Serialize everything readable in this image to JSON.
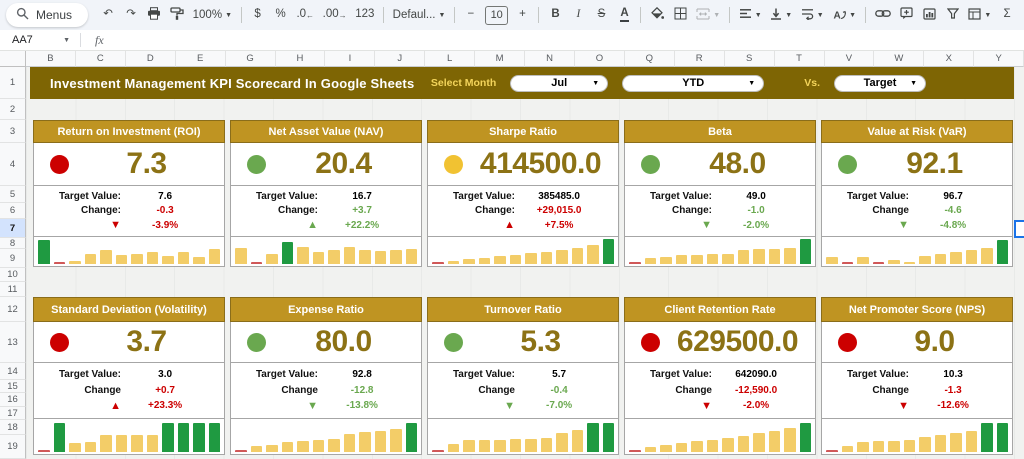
{
  "palette": {
    "banner_bg": "#7e6504",
    "card_header_bg": "#bf9422",
    "value_gold": "#8c7215",
    "bar_gold": "#f3cd68",
    "bar_green": "#1f9a41",
    "bar_red": "#d05858",
    "red": "#cc0000",
    "green": "#6aa84f",
    "yellow": "#f1c232",
    "banner_label": "#f3d45b"
  },
  "toolbar": {
    "items": [
      {
        "name": "menus",
        "type": "pill",
        "icon": "search",
        "label": "Menus"
      },
      {
        "name": "undo",
        "glyph": "↶"
      },
      {
        "name": "redo",
        "glyph": "↷"
      },
      {
        "name": "print",
        "icon": "print"
      },
      {
        "name": "paint-format",
        "icon": "paint"
      },
      {
        "name": "zoom",
        "label": "100%",
        "caret": true
      },
      {
        "type": "divider"
      },
      {
        "name": "format-as-currency",
        "glyph": "$"
      },
      {
        "name": "format-as-percent",
        "glyph": "%"
      },
      {
        "name": "decrease-decimal-places",
        "glyph": ".0",
        "small": "←"
      },
      {
        "name": "increase-decimal-places",
        "glyph": ".00",
        "small": "→"
      },
      {
        "name": "more-formats",
        "glyph": "123"
      },
      {
        "type": "divider"
      },
      {
        "name": "font",
        "label": "Defaul...",
        "caret": true
      },
      {
        "type": "divider"
      },
      {
        "name": "decrease-font-size",
        "glyph": "−"
      },
      {
        "name": "font-size",
        "type": "box",
        "label": "10"
      },
      {
        "name": "increase-font-size",
        "glyph": "+"
      },
      {
        "type": "divider"
      },
      {
        "name": "bold",
        "glyph": "B",
        "cls": "b"
      },
      {
        "name": "italic",
        "glyph": "I",
        "cls": "i"
      },
      {
        "name": "strikethrough",
        "glyph": "S",
        "cls": "s"
      },
      {
        "name": "text-color",
        "glyph": "A",
        "cls": "u"
      },
      {
        "type": "divider"
      },
      {
        "name": "fill-color",
        "icon": "fill"
      },
      {
        "name": "borders",
        "icon": "borders"
      },
      {
        "name": "merge-cells",
        "icon": "merge",
        "caret": true,
        "disabled": true
      },
      {
        "type": "divider"
      },
      {
        "name": "horizontal-align",
        "icon": "align",
        "caret": true
      },
      {
        "name": "vertical-align",
        "icon": "valign",
        "caret": true
      },
      {
        "name": "text-wrapping",
        "icon": "wrap",
        "caret": true
      },
      {
        "name": "text-rotation",
        "icon": "rotate",
        "caret": true
      },
      {
        "type": "divider"
      },
      {
        "name": "insert-link",
        "icon": "link"
      },
      {
        "name": "insert-comment",
        "icon": "comment"
      },
      {
        "name": "insert-chart",
        "icon": "chart"
      },
      {
        "name": "create-filter",
        "icon": "filter"
      },
      {
        "name": "table-views",
        "icon": "table",
        "caret": true
      },
      {
        "name": "functions",
        "glyph": "Σ"
      }
    ]
  },
  "formula_bar": {
    "name_box": "AA7",
    "fx_label": "fx",
    "formula": ""
  },
  "grid": {
    "columns": [
      "B",
      "C",
      "D",
      "E",
      "G",
      "H",
      "I",
      "J",
      "L",
      "M",
      "N",
      "O",
      "Q",
      "R",
      "S",
      "T",
      "V",
      "W",
      "X",
      "Y"
    ],
    "rows": [
      "1",
      "2",
      "3",
      "4",
      "5",
      "6",
      "7",
      "8",
      "9",
      "10",
      "11",
      "12",
      "13",
      "14",
      "15",
      "16",
      "17",
      "18",
      "19"
    ],
    "selected_row": "7"
  },
  "banner": {
    "title": "Investment Management KPI Scorecard In Google Sheets",
    "select_month_label": "Select Month",
    "month": "Jul",
    "period": "YTD",
    "vs_label": "Vs.",
    "compare": "Target"
  },
  "cards": [
    {
      "title": "Return on Investment (ROI)",
      "dot": "red",
      "value": "7.3",
      "target_label": "Target Value:",
      "target": "7.6",
      "change_label": "Change:",
      "change": "-0.3",
      "change_color": "red",
      "arrow": "▼",
      "pct": "-3.9%",
      "trend_color": "red",
      "spark": [
        {
          "h": 95,
          "c": "green"
        },
        {
          "h": 7,
          "c": "red"
        },
        {
          "h": 14,
          "c": "gold"
        },
        {
          "h": 40,
          "c": "gold"
        },
        {
          "h": 55,
          "c": "gold"
        },
        {
          "h": 38,
          "c": "gold"
        },
        {
          "h": 40,
          "c": "gold"
        },
        {
          "h": 48,
          "c": "gold"
        },
        {
          "h": 32,
          "c": "gold"
        },
        {
          "h": 48,
          "c": "gold"
        },
        {
          "h": 28,
          "c": "gold"
        },
        {
          "h": 62,
          "c": "gold"
        }
      ]
    },
    {
      "title": "Net Asset Value (NAV)",
      "dot": "green",
      "value": "20.4",
      "target_label": "Target Value:",
      "target": "16.7",
      "change_label": "Change:",
      "change": "+3.7",
      "change_color": "green",
      "arrow": "▲",
      "pct": "+22.2%",
      "trend_color": "green",
      "spark": [
        {
          "h": 65,
          "c": "gold"
        },
        {
          "h": 6,
          "c": "red"
        },
        {
          "h": 40,
          "c": "gold"
        },
        {
          "h": 90,
          "c": "green"
        },
        {
          "h": 68,
          "c": "gold"
        },
        {
          "h": 48,
          "c": "gold"
        },
        {
          "h": 55,
          "c": "gold"
        },
        {
          "h": 68,
          "c": "gold"
        },
        {
          "h": 58,
          "c": "gold"
        },
        {
          "h": 52,
          "c": "gold"
        },
        {
          "h": 58,
          "c": "gold"
        },
        {
          "h": 62,
          "c": "gold"
        }
      ]
    },
    {
      "title": "Sharpe Ratio",
      "dot": "yellow",
      "value": "414500.0",
      "target_label": "Target Value:",
      "target": "385485.0",
      "change_label": "Change:",
      "change": "+29,015.0",
      "change_color": "red",
      "arrow": "▲",
      "pct": "+7.5%",
      "trend_color": "red",
      "spark": [
        {
          "h": 8,
          "c": "red"
        },
        {
          "h": 14,
          "c": "gold"
        },
        {
          "h": 20,
          "c": "gold"
        },
        {
          "h": 26,
          "c": "gold"
        },
        {
          "h": 32,
          "c": "gold"
        },
        {
          "h": 38,
          "c": "gold"
        },
        {
          "h": 44,
          "c": "gold"
        },
        {
          "h": 50,
          "c": "gold"
        },
        {
          "h": 58,
          "c": "gold"
        },
        {
          "h": 66,
          "c": "gold"
        },
        {
          "h": 76,
          "c": "gold"
        },
        {
          "h": 100,
          "c": "green"
        }
      ]
    },
    {
      "title": "Beta",
      "dot": "green",
      "value": "48.0",
      "target_label": "Target Value:",
      "target": "49.0",
      "change_label": "Change:",
      "change": "-1.0",
      "change_color": "green",
      "arrow": "▼",
      "pct": "-2.0%",
      "trend_color": "green",
      "spark": [
        {
          "h": 8,
          "c": "red"
        },
        {
          "h": 25,
          "c": "gold"
        },
        {
          "h": 28,
          "c": "gold"
        },
        {
          "h": 35,
          "c": "gold"
        },
        {
          "h": 38,
          "c": "gold"
        },
        {
          "h": 40,
          "c": "gold"
        },
        {
          "h": 42,
          "c": "gold"
        },
        {
          "h": 58,
          "c": "gold"
        },
        {
          "h": 62,
          "c": "gold"
        },
        {
          "h": 60,
          "c": "gold"
        },
        {
          "h": 66,
          "c": "gold"
        },
        {
          "h": 100,
          "c": "green"
        }
      ]
    },
    {
      "title": "Value at Risk (VaR)",
      "dot": "green",
      "value": "92.1",
      "target_label": "Target Value:",
      "target": "96.7",
      "change_label": "Change",
      "change": "-4.6",
      "change_color": "green",
      "arrow": "▼",
      "pct": "-4.8%",
      "trend_color": "green",
      "spark": [
        {
          "h": 28,
          "c": "gold"
        },
        {
          "h": 10,
          "c": "red"
        },
        {
          "h": 30,
          "c": "gold"
        },
        {
          "h": 10,
          "c": "red"
        },
        {
          "h": 18,
          "c": "gold"
        },
        {
          "h": 10,
          "c": "gold"
        },
        {
          "h": 32,
          "c": "gold"
        },
        {
          "h": 40,
          "c": "gold"
        },
        {
          "h": 48,
          "c": "gold"
        },
        {
          "h": 58,
          "c": "gold"
        },
        {
          "h": 64,
          "c": "gold"
        },
        {
          "h": 95,
          "c": "green"
        }
      ]
    },
    {
      "title": "Standard Deviation (Volatility)",
      "dot": "red",
      "value": "3.7",
      "target_label": "Target Value:",
      "target": "3.0",
      "change_label": "Change",
      "change": "+0.7",
      "change_color": "red",
      "arrow": "▲",
      "pct": "+23.3%",
      "trend_color": "red",
      "spark": [
        {
          "h": 8,
          "c": "red"
        },
        {
          "h": 92,
          "c": "green"
        },
        {
          "h": 30,
          "c": "gold"
        },
        {
          "h": 32,
          "c": "gold"
        },
        {
          "h": 55,
          "c": "gold"
        },
        {
          "h": 55,
          "c": "gold"
        },
        {
          "h": 55,
          "c": "gold"
        },
        {
          "h": 55,
          "c": "gold"
        },
        {
          "h": 92,
          "c": "green"
        },
        {
          "h": 92,
          "c": "green"
        },
        {
          "h": 92,
          "c": "green"
        },
        {
          "h": 92,
          "c": "green"
        }
      ]
    },
    {
      "title": "Expense Ratio",
      "dot": "green",
      "value": "80.0",
      "target_label": "Target Value:",
      "target": "92.8",
      "change_label": "Change",
      "change": "-12.8",
      "change_color": "green",
      "arrow": "▼",
      "pct": "-13.8%",
      "trend_color": "green",
      "spark": [
        {
          "h": 6,
          "c": "red"
        },
        {
          "h": 20,
          "c": "gold"
        },
        {
          "h": 24,
          "c": "gold"
        },
        {
          "h": 32,
          "c": "gold"
        },
        {
          "h": 34,
          "c": "gold"
        },
        {
          "h": 38,
          "c": "gold"
        },
        {
          "h": 42,
          "c": "gold"
        },
        {
          "h": 58,
          "c": "gold"
        },
        {
          "h": 65,
          "c": "gold"
        },
        {
          "h": 68,
          "c": "gold"
        },
        {
          "h": 74,
          "c": "gold"
        },
        {
          "h": 95,
          "c": "green"
        }
      ]
    },
    {
      "title": "Turnover Ratio",
      "dot": "green",
      "value": "5.3",
      "target_label": "Target Value:",
      "target": "5.7",
      "change_label": "Change",
      "change": "-0.4",
      "change_color": "green",
      "arrow": "▼",
      "pct": "-7.0%",
      "trend_color": "green",
      "spark": [
        {
          "h": 8,
          "c": "red"
        },
        {
          "h": 26,
          "c": "gold"
        },
        {
          "h": 38,
          "c": "gold"
        },
        {
          "h": 40,
          "c": "gold"
        },
        {
          "h": 40,
          "c": "gold"
        },
        {
          "h": 42,
          "c": "gold"
        },
        {
          "h": 42,
          "c": "gold"
        },
        {
          "h": 44,
          "c": "gold"
        },
        {
          "h": 62,
          "c": "gold"
        },
        {
          "h": 70,
          "c": "gold"
        },
        {
          "h": 92,
          "c": "green"
        },
        {
          "h": 92,
          "c": "green"
        }
      ]
    },
    {
      "title": "Client Retention Rate",
      "dot": "red",
      "value": "629500.0",
      "target_label": "Target Value:",
      "target": "642090.0",
      "change_label": "Change",
      "change": "-12,590.0",
      "change_color": "red",
      "arrow": "▼",
      "pct": "-2.0%",
      "trend_color": "red",
      "spark": [
        {
          "h": 8,
          "c": "red"
        },
        {
          "h": 16,
          "c": "gold"
        },
        {
          "h": 24,
          "c": "gold"
        },
        {
          "h": 28,
          "c": "gold"
        },
        {
          "h": 34,
          "c": "gold"
        },
        {
          "h": 38,
          "c": "gold"
        },
        {
          "h": 46,
          "c": "gold"
        },
        {
          "h": 52,
          "c": "gold"
        },
        {
          "h": 60,
          "c": "gold"
        },
        {
          "h": 68,
          "c": "gold"
        },
        {
          "h": 76,
          "c": "gold"
        },
        {
          "h": 95,
          "c": "green"
        }
      ]
    },
    {
      "title": "Net Promoter Score (NPS)",
      "dot": "red",
      "value": "9.0",
      "target_label": "Target Value:",
      "target": "10.3",
      "change_label": "Change",
      "change": "-1.3",
      "change_color": "red",
      "arrow": "▼",
      "pct": "-12.6%",
      "trend_color": "red",
      "spark": [
        {
          "h": 8,
          "c": "red"
        },
        {
          "h": 18,
          "c": "gold"
        },
        {
          "h": 32,
          "c": "gold"
        },
        {
          "h": 34,
          "c": "gold"
        },
        {
          "h": 36,
          "c": "gold"
        },
        {
          "h": 40,
          "c": "gold"
        },
        {
          "h": 48,
          "c": "gold"
        },
        {
          "h": 55,
          "c": "gold"
        },
        {
          "h": 62,
          "c": "gold"
        },
        {
          "h": 68,
          "c": "gold"
        },
        {
          "h": 92,
          "c": "green"
        },
        {
          "h": 92,
          "c": "green"
        }
      ]
    }
  ]
}
